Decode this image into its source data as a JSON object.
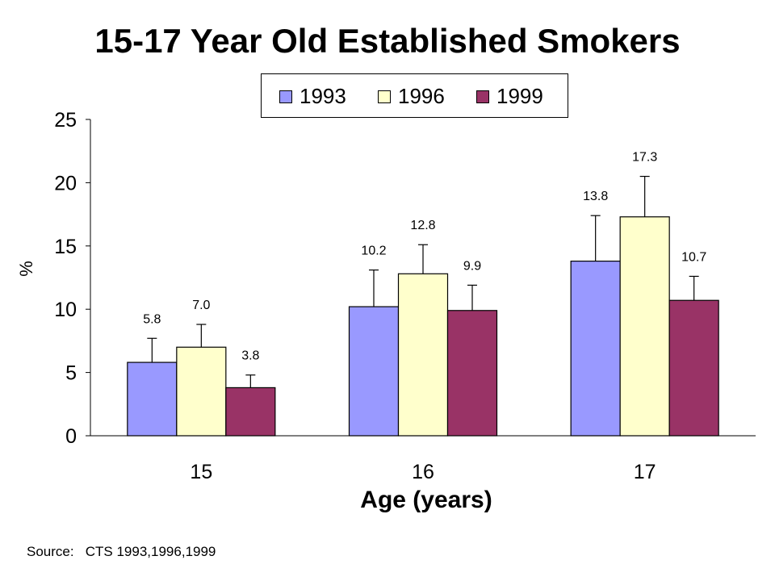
{
  "chart_data": {
    "type": "bar",
    "title": "15-17 Year Old Established Smokers",
    "xlabel": "Age (years)",
    "ylabel": "%",
    "categories": [
      "15",
      "16",
      "17"
    ],
    "series": [
      {
        "name": "1993",
        "values": [
          5.8,
          10.2,
          13.8
        ],
        "errors": [
          1.9,
          2.9,
          3.6
        ],
        "labels": [
          "5.8",
          "10.2",
          "13.8"
        ],
        "color": "#9999FF"
      },
      {
        "name": "1996",
        "values": [
          7.0,
          12.8,
          17.3
        ],
        "errors": [
          1.8,
          2.3,
          3.2
        ],
        "labels": [
          "7.0",
          "12.8",
          "17.3"
        ],
        "color": "#FFFFCC"
      },
      {
        "name": "1999",
        "values": [
          3.8,
          9.9,
          10.7
        ],
        "errors": [
          1.0,
          2.0,
          1.9
        ],
        "labels": [
          "3.8",
          "9.9",
          "10.7"
        ],
        "color": "#993366"
      }
    ],
    "ylim": [
      0,
      25
    ],
    "yticks": [
      0,
      5,
      10,
      15,
      20,
      25
    ],
    "grid": false,
    "legend": "top-center",
    "source": "Source:   CTS 1993,1996,1999"
  }
}
